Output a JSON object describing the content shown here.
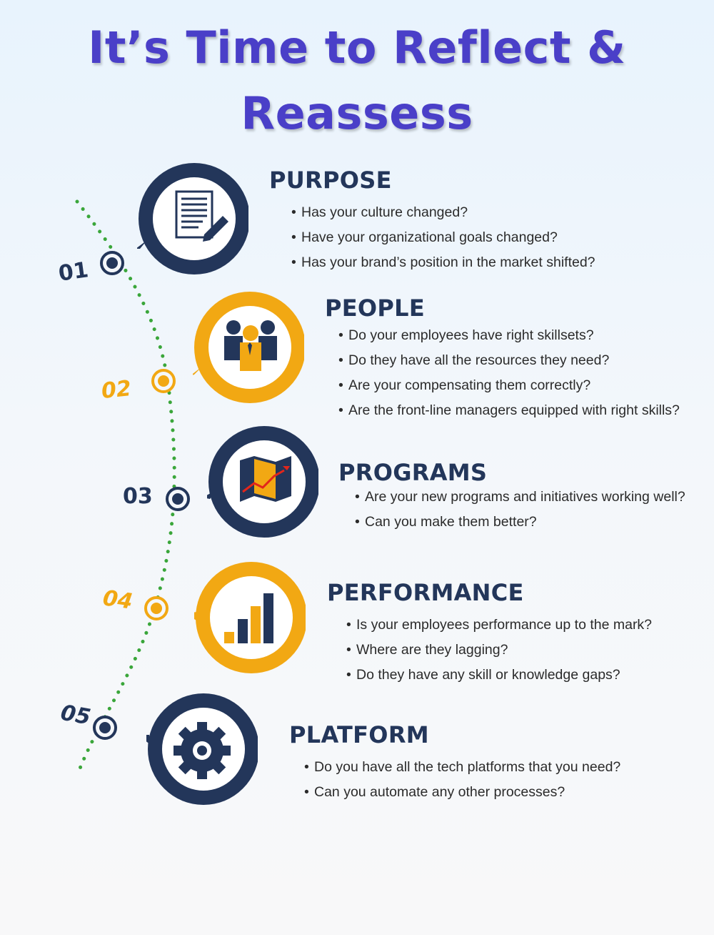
{
  "title": {
    "line1": "It’s Time to Reflect &",
    "line2": "Reassess"
  },
  "colors": {
    "navy": "#23365a",
    "orange": "#f2a813",
    "title": "#4a3fc8",
    "timeline": "#3aa63a"
  },
  "sections": [
    {
      "number": "01",
      "heading": "PURPOSE",
      "icon": "document-pen-icon",
      "color": "navy",
      "bullets": [
        "Has your culture changed?",
        "Have your organizational goals changed?",
        "Has your brand’s position in the market shifted?"
      ]
    },
    {
      "number": "02",
      "heading": "PEOPLE",
      "icon": "team-people-icon",
      "color": "orange",
      "bullets": [
        "Do your employees have right skillsets?",
        "Do they have all the resources they need?",
        "Are your compensating them correctly?",
        "Are the front-line managers equipped with right skills?"
      ]
    },
    {
      "number": "03",
      "heading": "PROGRAMS",
      "icon": "map-route-icon",
      "color": "navy",
      "bullets": [
        "Are your new programs and initiatives working well?",
        "Can you make them better?"
      ]
    },
    {
      "number": "04",
      "heading": "PERFORMANCE",
      "icon": "bar-chart-icon",
      "color": "orange",
      "bullets": [
        "Is your employees performance up to the mark?",
        "Where are they lagging?",
        "Do they have any skill or knowledge gaps?"
      ]
    },
    {
      "number": "05",
      "heading": "PLATFORM",
      "icon": "gear-icon",
      "color": "navy",
      "bullets": [
        "Do you have all the tech platforms that you need?",
        "Can you automate any other processes?"
      ]
    }
  ]
}
